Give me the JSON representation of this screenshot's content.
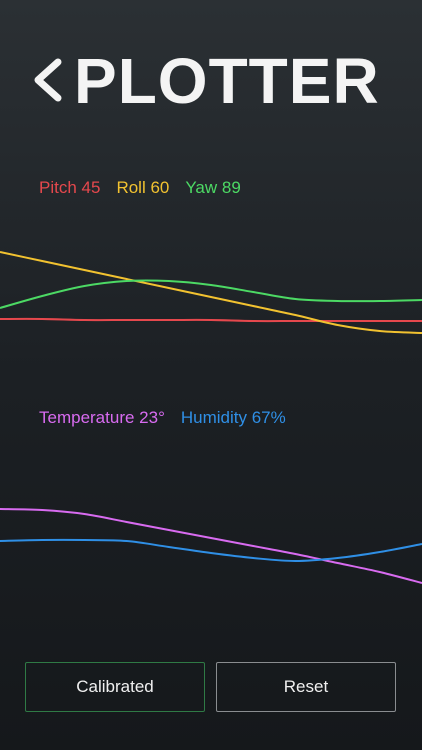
{
  "header": {
    "title": "PLOTTER"
  },
  "chart_data": [
    {
      "type": "line",
      "x": [
        0,
        1,
        2,
        3,
        4,
        5,
        6,
        7,
        8,
        9,
        10
      ],
      "xlim": [
        0,
        10
      ],
      "ylim": [
        0,
        100
      ],
      "series": [
        {
          "name": "Pitch 45",
          "color": "#e5484d",
          "values": [
            21,
            21,
            20,
            20,
            20,
            20,
            19,
            19,
            19,
            19,
            19
          ]
        },
        {
          "name": "Roll 60",
          "color": "#f2c230",
          "values": [
            88,
            79,
            70,
            61,
            52,
            43,
            34,
            25,
            15,
            9,
            7
          ]
        },
        {
          "name": "Yaw 89",
          "color": "#4cd964",
          "values": [
            32,
            44,
            54,
            59,
            59,
            55,
            48,
            41,
            39,
            39,
            40
          ]
        }
      ]
    },
    {
      "type": "line",
      "x": [
        0,
        1,
        2,
        3,
        4,
        5,
        6,
        7,
        8,
        9,
        10
      ],
      "xlim": [
        0,
        10
      ],
      "ylim": [
        0,
        100
      ],
      "series": [
        {
          "name": "Temperature 23°",
          "color": "#d86bf0",
          "values": [
            81,
            80,
            76,
            68,
            60,
            52,
            44,
            36,
            27,
            18,
            7
          ]
        },
        {
          "name": "Humidity 67%",
          "color": "#2f8fe6",
          "values": [
            49,
            50,
            50,
            49,
            43,
            37,
            32,
            29,
            32,
            38,
            46
          ]
        }
      ]
    }
  ],
  "buttons": [
    {
      "label": "Calibrated"
    },
    {
      "label": "Reset"
    }
  ]
}
